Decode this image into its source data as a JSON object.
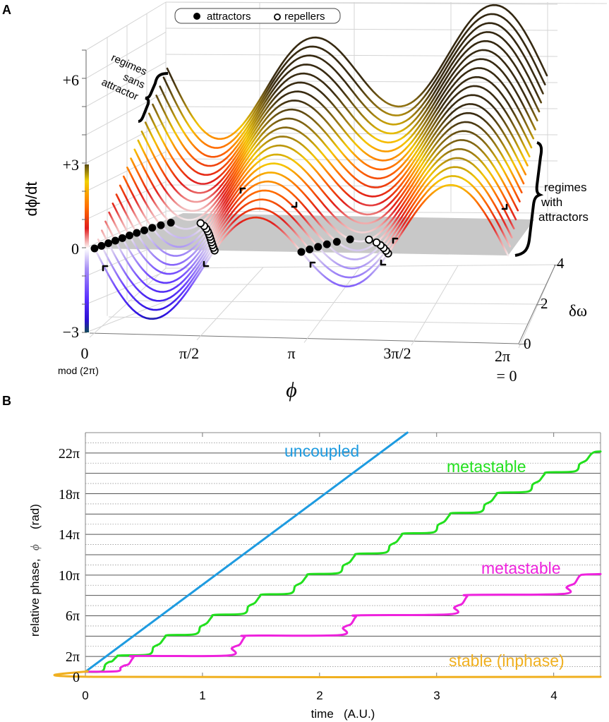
{
  "panel_a": {
    "label": "A",
    "legend": {
      "attractors": "attractors",
      "repellers": "repellers"
    },
    "annotation_sans_attractor": [
      "regimes",
      "sans",
      "attractor"
    ],
    "annotation_with_attractors": [
      "regimes",
      "with",
      "attractors"
    ],
    "x_mod_note": "mod (2π)",
    "x_end_note": "= 0"
  },
  "panel_b": {
    "label": "B"
  },
  "chart_data": [
    {
      "type": "line3d",
      "title": "",
      "zlabel": "dϕ/dt",
      "xlabel": "ϕ",
      "ylabel": "δω",
      "x_tick_labels": [
        "0",
        "π/2",
        "π",
        "3π/2",
        "2π"
      ],
      "z_tick_labels": [
        "+6",
        "+3",
        "0",
        "−3"
      ],
      "y_tick_labels": [
        "0",
        "2",
        "4"
      ],
      "delta_omega": [
        0,
        0.25,
        0.5,
        0.75,
        1,
        1.25,
        1.5,
        1.75,
        2,
        2.25,
        2.5,
        2.75,
        3,
        3.25,
        3.5,
        3.75,
        4,
        4.25,
        4.5,
        4.75,
        5
      ],
      "model": {
        "a": 1,
        "b": 1
      },
      "colormap": [
        {
          "z": -3,
          "color": "#123a5a"
        },
        {
          "z": -2.6,
          "color": "#2a10e0"
        },
        {
          "z": -1.6,
          "color": "#6a40ff"
        },
        {
          "z": -0.6,
          "color": "#b8a6f2"
        },
        {
          "z": 0,
          "color": "#f6eef0"
        },
        {
          "z": 0.5,
          "color": "#f0a0a0"
        },
        {
          "z": 1.1,
          "color": "#e01c1c"
        },
        {
          "z": 2.0,
          "color": "#ff6a00"
        },
        {
          "z": 2.8,
          "color": "#f5c800"
        },
        {
          "z": 3.6,
          "color": "#9a7a12"
        },
        {
          "z": 4.6,
          "color": "#3a2c12"
        },
        {
          "z": 9,
          "color": "#2e2410"
        }
      ],
      "plane_color": "#c8c8c8"
    },
    {
      "type": "line",
      "title": "",
      "xlabel": "time   (A.U.)",
      "ylabel_parts": [
        "relative phase,",
        "ϕ",
        "(rad)"
      ],
      "xlim": [
        0,
        4.4
      ],
      "ylim_pi": [
        0,
        24
      ],
      "x_ticks": [
        0,
        1,
        2,
        3,
        4
      ],
      "x_tick_labels": [
        "0",
        "1",
        "2",
        "3",
        "4"
      ],
      "y_ticks_pi": [
        0,
        2,
        6,
        10,
        14,
        18,
        22
      ],
      "y_tick_labels": [
        "0",
        "2π",
        "6π",
        "10π",
        "14π",
        "18π",
        "22π"
      ],
      "grid": {
        "solid_every_pi": 2,
        "dotted_odd_pi": true
      },
      "series": [
        {
          "name": "uncoupled",
          "color": "#1e9be0",
          "points": [
            [
              0,
              0.5
            ],
            [
              2.75,
              24
            ]
          ]
        },
        {
          "name": "metastable",
          "color": "#22e01e",
          "points": [
            [
              0,
              0.5
            ],
            [
              0.14,
              0.55
            ],
            [
              0.17,
              1.2
            ],
            [
              0.2,
              1.45
            ],
            [
              0.23,
              1.55
            ],
            [
              0.27,
              2.0
            ],
            [
              0.3,
              2.1
            ],
            [
              0.54,
              2.2
            ],
            [
              0.58,
              2.9
            ],
            [
              0.61,
              3.1
            ],
            [
              0.64,
              3.3
            ],
            [
              0.68,
              3.9
            ],
            [
              0.71,
              4.1
            ],
            [
              0.94,
              4.2
            ],
            [
              0.98,
              4.9
            ],
            [
              1.01,
              5.1
            ],
            [
              1.04,
              5.3
            ],
            [
              1.08,
              5.9
            ],
            [
              1.11,
              6.1
            ],
            [
              1.35,
              6.2
            ],
            [
              1.39,
              6.9
            ],
            [
              1.42,
              7.1
            ],
            [
              1.45,
              7.3
            ],
            [
              1.49,
              7.9
            ],
            [
              1.52,
              8.1
            ],
            [
              1.75,
              8.2
            ],
            [
              1.79,
              8.9
            ],
            [
              1.82,
              9.1
            ],
            [
              1.85,
              9.3
            ],
            [
              1.89,
              9.9
            ],
            [
              1.92,
              10.1
            ],
            [
              2.16,
              10.2
            ],
            [
              2.2,
              10.9
            ],
            [
              2.23,
              11.1
            ],
            [
              2.26,
              11.3
            ],
            [
              2.3,
              11.9
            ],
            [
              2.33,
              12.1
            ],
            [
              2.56,
              12.2
            ],
            [
              2.6,
              12.9
            ],
            [
              2.63,
              13.1
            ],
            [
              2.66,
              13.3
            ],
            [
              2.7,
              13.9
            ],
            [
              2.73,
              14.1
            ],
            [
              2.97,
              14.2
            ],
            [
              3.01,
              14.9
            ],
            [
              3.04,
              15.1
            ],
            [
              3.07,
              15.3
            ],
            [
              3.11,
              15.9
            ],
            [
              3.14,
              16.1
            ],
            [
              3.37,
              16.2
            ],
            [
              3.41,
              16.9
            ],
            [
              3.44,
              17.1
            ],
            [
              3.47,
              17.3
            ],
            [
              3.51,
              17.9
            ],
            [
              3.54,
              18.1
            ],
            [
              3.78,
              18.2
            ],
            [
              3.82,
              18.9
            ],
            [
              3.85,
              19.1
            ],
            [
              3.88,
              19.3
            ],
            [
              3.92,
              19.9
            ],
            [
              3.95,
              20.1
            ],
            [
              4.18,
              20.2
            ],
            [
              4.22,
              20.9
            ],
            [
              4.25,
              21.1
            ],
            [
              4.28,
              21.3
            ],
            [
              4.32,
              21.9
            ],
            [
              4.35,
              22.1
            ],
            [
              4.4,
              22.15
            ]
          ]
        },
        {
          "name": "metastable",
          "color": "#ee22dd",
          "points": [
            [
              0,
              0.5
            ],
            [
              0.27,
              0.55
            ],
            [
              0.3,
              0.9
            ],
            [
              0.33,
              1.1
            ],
            [
              0.37,
              1.25
            ],
            [
              0.41,
              1.9
            ],
            [
              0.45,
              2.05
            ],
            [
              1.22,
              2.1
            ],
            [
              1.25,
              2.8
            ],
            [
              1.28,
              3.0
            ],
            [
              1.32,
              3.2
            ],
            [
              1.36,
              3.9
            ],
            [
              1.4,
              4.05
            ],
            [
              2.17,
              4.1
            ],
            [
              2.2,
              4.8
            ],
            [
              2.23,
              5.0
            ],
            [
              2.27,
              5.2
            ],
            [
              2.31,
              5.9
            ],
            [
              2.35,
              6.05
            ],
            [
              3.12,
              6.15
            ],
            [
              3.15,
              6.8
            ],
            [
              3.18,
              7.0
            ],
            [
              3.22,
              7.2
            ],
            [
              3.26,
              7.9
            ],
            [
              3.3,
              8.05
            ],
            [
              4.08,
              8.15
            ],
            [
              4.11,
              8.8
            ],
            [
              4.14,
              9.0
            ],
            [
              4.18,
              9.2
            ],
            [
              4.22,
              9.9
            ],
            [
              4.26,
              10.05
            ],
            [
              4.4,
              10.1
            ]
          ]
        },
        {
          "name": "stable (inphase)",
          "color": "#f0b020",
          "points": [
            [
              0,
              0.5
            ],
            [
              0.02,
              0.55
            ],
            [
              0.07,
              0
            ],
            [
              4.4,
              0
            ]
          ]
        }
      ]
    }
  ]
}
